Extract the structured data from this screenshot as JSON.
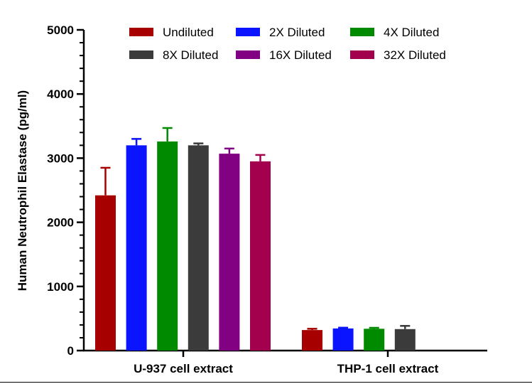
{
  "chart_data": {
    "type": "bar",
    "ylabel": "Human Neutrophil Elastase (pg/ml)",
    "ylim": [
      0,
      5000
    ],
    "yticks": [
      0,
      1000,
      2000,
      3000,
      4000,
      5000
    ],
    "grid": false,
    "legend_position": "top",
    "categories": [
      "U-937 cell extract",
      "THP-1 cell extract"
    ],
    "series": [
      {
        "name": "Undiluted",
        "color": "#a60000",
        "values": [
          2420,
          320
        ],
        "errors": [
          430,
          20
        ]
      },
      {
        "name": "2X Diluted",
        "color": "#0a14ff",
        "values": [
          3200,
          345
        ],
        "errors": [
          100,
          12
        ]
      },
      {
        "name": "4X Diluted",
        "color": "#008a00",
        "values": [
          3260,
          340
        ],
        "errors": [
          210,
          15
        ]
      },
      {
        "name": "8X Diluted",
        "color": "#3b3b3b",
        "values": [
          3200,
          335
        ],
        "errors": [
          30,
          50
        ]
      },
      {
        "name": "16X Diluted",
        "color": "#820082",
        "values": [
          3070,
          null
        ],
        "errors": [
          80,
          null
        ]
      },
      {
        "name": "32X Diluted",
        "color": "#a3004d",
        "values": [
          2950,
          null
        ],
        "errors": [
          100,
          null
        ]
      }
    ]
  }
}
